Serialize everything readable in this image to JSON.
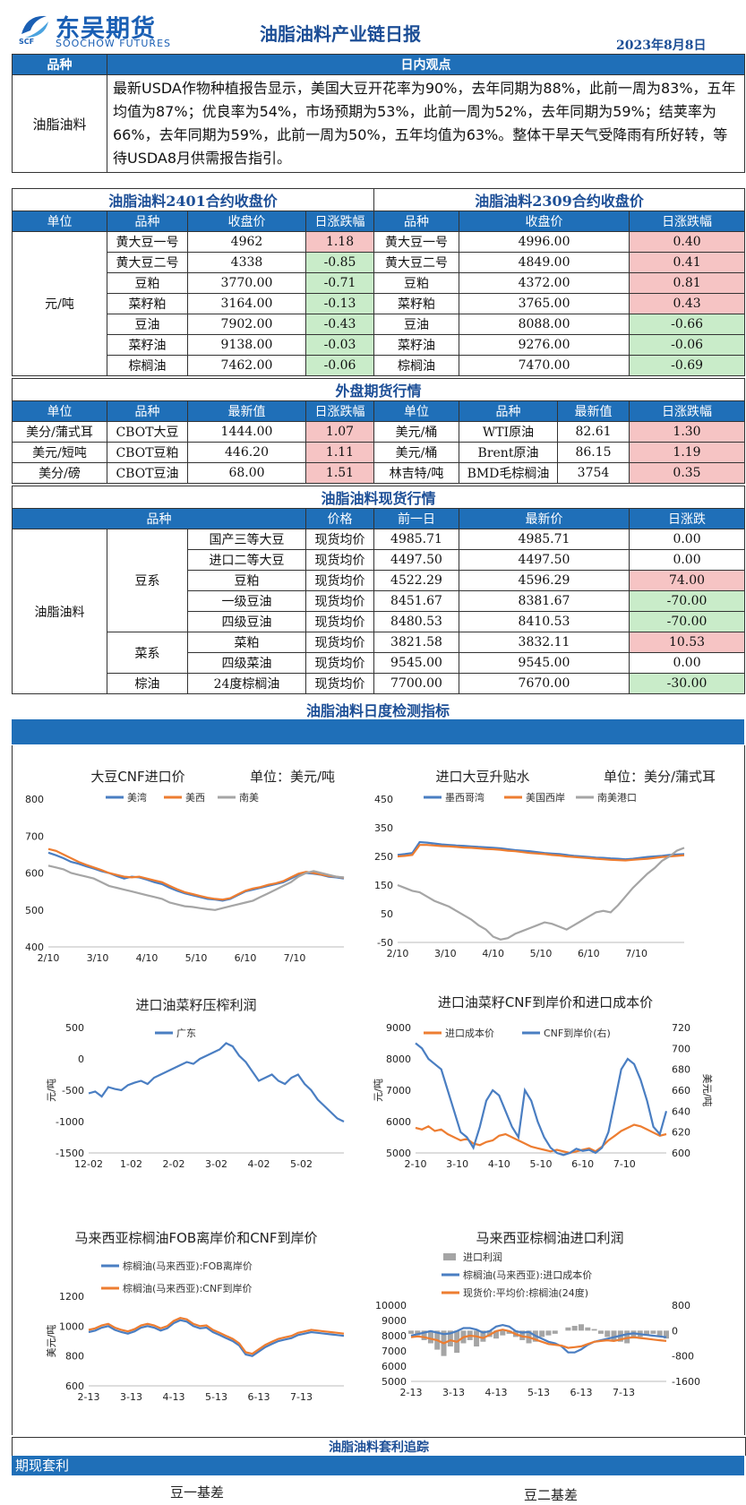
{
  "header": {
    "logo_cn": "东吴期货",
    "logo_en": "SOOCHOW FUTURES",
    "logo_mark": "SCF",
    "title": "油脂油料产业链日报",
    "date": "2023年8月8日"
  },
  "view": {
    "col1": "品种",
    "col2": "日内观点",
    "variety": "油脂油料",
    "text": "最新USDA作物种植报告显示，美国大豆开花率为90%，去年同期为88%，此前一周为83%，五年均值为87%；优良率为54%，市场预期为53%，此前一周为52%，去年同期为59%；结荚率为66%，去年同期为59%，此前一周为50%，五年均值为63%。整体干旱天气受降雨有所好转，等待USDA8月供需报告指引。"
  },
  "contracts": {
    "title_left": "油脂油料2401合约收盘价",
    "title_right": "油脂油料2309合约收盘价",
    "headers": [
      "单位",
      "品种",
      "收盘价",
      "日涨跌幅",
      "品种",
      "收盘价",
      "日涨跌幅"
    ],
    "unit": "元/吨",
    "rows": [
      {
        "n1": "黄大豆一号",
        "p1": "4962",
        "c1": "1.18",
        "s1": "pos",
        "n2": "黄大豆一号",
        "p2": "4996.00",
        "c2": "0.40",
        "s2": "pos"
      },
      {
        "n1": "黄大豆二号",
        "p1": "4338",
        "c1": "-0.85",
        "s1": "neg",
        "n2": "黄大豆二号",
        "p2": "4849.00",
        "c2": "0.41",
        "s2": "pos"
      },
      {
        "n1": "豆粕",
        "p1": "3770.00",
        "c1": "-0.71",
        "s1": "neg",
        "n2": "豆粕",
        "p2": "4372.00",
        "c2": "0.81",
        "s2": "pos"
      },
      {
        "n1": "菜籽粕",
        "p1": "3164.00",
        "c1": "-0.13",
        "s1": "neg",
        "n2": "菜籽粕",
        "p2": "3765.00",
        "c2": "0.43",
        "s2": "pos"
      },
      {
        "n1": "豆油",
        "p1": "7902.00",
        "c1": "-0.43",
        "s1": "neg",
        "n2": "豆油",
        "p2": "8088.00",
        "c2": "-0.66",
        "s2": "neg"
      },
      {
        "n1": "菜籽油",
        "p1": "9138.00",
        "c1": "-0.03",
        "s1": "neg",
        "n2": "菜籽油",
        "p2": "9276.00",
        "c2": "-0.06",
        "s2": "neg"
      },
      {
        "n1": "棕榈油",
        "p1": "7462.00",
        "c1": "-0.06",
        "s1": "neg",
        "n2": "棕榈油",
        "p2": "7470.00",
        "c2": "-0.69",
        "s2": "neg"
      }
    ]
  },
  "foreign": {
    "title": "外盘期货行情",
    "headers": [
      "单位",
      "品种",
      "最新值",
      "日涨跌幅",
      "单位",
      "品种",
      "最新值",
      "日涨跌幅"
    ],
    "rows": [
      {
        "u1": "美分/蒲式耳",
        "n1": "CBOT大豆",
        "v1": "1444.00",
        "c1": "1.07",
        "u2": "美元/桶",
        "n2": "WTI原油",
        "v2": "82.61",
        "c2": "1.30"
      },
      {
        "u1": "美元/短吨",
        "n1": "CBOT豆粕",
        "v1": "446.20",
        "c1": "1.11",
        "u2": "美元/桶",
        "n2": "Brent原油",
        "v2": "86.15",
        "c2": "1.19"
      },
      {
        "u1": "美分/磅",
        "n1": "CBOT豆油",
        "v1": "68.00",
        "c1": "1.51",
        "u2": "林吉特/吨",
        "n2": "BMD毛棕榈油",
        "v2": "3754",
        "c2": "0.35"
      }
    ]
  },
  "spot": {
    "title": "油脂油料现货行情",
    "headers": [
      "品种",
      "价格",
      "前一日",
      "最新价",
      "日涨跌"
    ],
    "group": "油脂油料",
    "families": [
      "豆系",
      "菜系",
      "棕油"
    ],
    "rows": [
      {
        "item": "国产三等大豆",
        "type": "现货均价",
        "prev": "4985.71",
        "last": "4985.71",
        "chg": "0.00",
        "s": ""
      },
      {
        "item": "进口二等大豆",
        "type": "现货均价",
        "prev": "4497.50",
        "last": "4497.50",
        "chg": "0.00",
        "s": ""
      },
      {
        "item": "豆粕",
        "type": "现货均价",
        "prev": "4522.29",
        "last": "4596.29",
        "chg": "74.00",
        "s": "pos"
      },
      {
        "item": "一级豆油",
        "type": "现货均价",
        "prev": "8451.67",
        "last": "8381.67",
        "chg": "-70.00",
        "s": "neg"
      },
      {
        "item": "四级豆油",
        "type": "现货均价",
        "prev": "8480.53",
        "last": "8410.53",
        "chg": "-70.00",
        "s": "neg"
      },
      {
        "item": "菜粕",
        "type": "现货均价",
        "prev": "3821.58",
        "last": "3832.11",
        "chg": "10.53",
        "s": "pos"
      },
      {
        "item": "四级菜油",
        "type": "现货均价",
        "prev": "9545.00",
        "last": "9545.00",
        "chg": "0.00",
        "s": ""
      },
      {
        "item": "24度棕榈油",
        "type": "现货均价",
        "prev": "7700.00",
        "last": "7670.00",
        "chg": "-30.00",
        "s": "neg"
      }
    ]
  },
  "monitor": {
    "title": "油脂油料日度检测指标"
  },
  "colors": {
    "blue": "#4a7ec2",
    "orange": "#ed7d31",
    "gray": "#a5a5a5"
  },
  "chart_data": [
    {
      "id": "c1",
      "type": "line",
      "title": "大豆CNF进口价",
      "unit_label": "单位：美元/吨",
      "x_ticks": [
        "2/10",
        "3/10",
        "4/10",
        "5/10",
        "6/10",
        "7/10"
      ],
      "ylim": [
        400,
        800
      ],
      "y_ticks": [
        "400",
        "500",
        "600",
        "700",
        "800"
      ],
      "series": [
        {
          "name": "美湾",
          "color": "#4a7ec2",
          "values": [
            655,
            648,
            640,
            630,
            625,
            618,
            612,
            605,
            600,
            592,
            585,
            590,
            588,
            582,
            575,
            570,
            560,
            552,
            545,
            540,
            535,
            530,
            528,
            525,
            530,
            540,
            550,
            555,
            560,
            565,
            570,
            575,
            585,
            595,
            600,
            598,
            595,
            590,
            588,
            585
          ]
        },
        {
          "name": "美西",
          "color": "#ed7d31",
          "values": [
            665,
            660,
            650,
            640,
            630,
            622,
            615,
            608,
            600,
            595,
            590,
            588,
            590,
            585,
            580,
            575,
            565,
            556,
            548,
            543,
            538,
            533,
            530,
            528,
            532,
            542,
            552,
            558,
            562,
            568,
            572,
            578,
            588,
            598,
            603,
            600,
            596,
            592,
            590,
            587
          ]
        },
        {
          "name": "南美",
          "color": "#a5a5a5",
          "values": [
            620,
            615,
            610,
            600,
            595,
            590,
            585,
            575,
            565,
            560,
            555,
            550,
            545,
            540,
            535,
            530,
            520,
            515,
            510,
            508,
            505,
            502,
            500,
            505,
            510,
            515,
            520,
            525,
            535,
            545,
            555,
            565,
            575,
            590,
            600,
            605,
            600,
            595,
            590,
            588
          ]
        }
      ]
    },
    {
      "id": "c2",
      "type": "line",
      "title": "进口大豆升贴水",
      "unit_label": "单位：美分/蒲式耳",
      "x_ticks": [
        "2/10",
        "3/10",
        "4/10",
        "5/10",
        "6/10",
        "7/10"
      ],
      "ylim": [
        -50,
        450
      ],
      "y_ticks": [
        "-50",
        "50",
        "150",
        "250",
        "350",
        "450"
      ],
      "series": [
        {
          "name": "墨西哥湾",
          "color": "#4a7ec2",
          "values": [
            255,
            258,
            262,
            300,
            298,
            295,
            292,
            290,
            288,
            287,
            285,
            283,
            282,
            280,
            278,
            275,
            272,
            270,
            268,
            265,
            262,
            260,
            258,
            255,
            252,
            250,
            248,
            246,
            245,
            243,
            242,
            240,
            242,
            245,
            248,
            250,
            252,
            255,
            257,
            258
          ]
        },
        {
          "name": "美国西岸",
          "color": "#ed7d31",
          "values": [
            250,
            252,
            255,
            290,
            290,
            288,
            286,
            285,
            283,
            281,
            280,
            278,
            276,
            275,
            273,
            270,
            268,
            265,
            262,
            260,
            258,
            255,
            253,
            250,
            248,
            246,
            244,
            242,
            240,
            238,
            237,
            236,
            238,
            240,
            242,
            245,
            248,
            250,
            252,
            254
          ]
        },
        {
          "name": "南美港口",
          "color": "#a5a5a5",
          "values": [
            150,
            140,
            130,
            125,
            110,
            95,
            85,
            75,
            60,
            45,
            30,
            10,
            -5,
            -30,
            -40,
            -35,
            -20,
            -10,
            0,
            10,
            20,
            15,
            5,
            -5,
            10,
            25,
            40,
            55,
            60,
            55,
            80,
            110,
            140,
            165,
            190,
            210,
            235,
            250,
            270,
            280
          ]
        }
      ]
    },
    {
      "id": "c3",
      "type": "line",
      "title": "进口油菜籽压榨利润",
      "x_ticks": [
        "12-02",
        "1-02",
        "2-02",
        "3-02",
        "4-02",
        "5-02"
      ],
      "ylim": [
        -1500,
        500
      ],
      "y_ticks": [
        "-1500",
        "-1000",
        "-500",
        "0",
        "500"
      ],
      "ylabel": "元/吨",
      "series": [
        {
          "name": "广东",
          "color": "#4a7ec2",
          "values": [
            -550,
            -520,
            -600,
            -450,
            -480,
            -500,
            -420,
            -380,
            -350,
            -400,
            -300,
            -250,
            -200,
            -150,
            -100,
            -50,
            -80,
            0,
            50,
            100,
            150,
            250,
            200,
            50,
            -50,
            -200,
            -350,
            -300,
            -250,
            -350,
            -400,
            -300,
            -250,
            -400,
            -500,
            -650,
            -750,
            -850,
            -950,
            -1000
          ]
        }
      ]
    },
    {
      "id": "c4",
      "type": "line",
      "title": "进口油菜籽CNF到岸价和进口成本价",
      "x_ticks": [
        "2-10",
        "3-10",
        "4-10",
        "5-10",
        "6-10",
        "7-10"
      ],
      "ylim": [
        5000,
        9000
      ],
      "y_ticks": [
        "5000",
        "6000",
        "7000",
        "8000",
        "9000"
      ],
      "y2lim": [
        600,
        720
      ],
      "y2_ticks": [
        "600",
        "620",
        "640",
        "660",
        "680",
        "700",
        "720"
      ],
      "ylabel": "元/吨",
      "y2label": "美元/吨",
      "series": [
        {
          "name": "进口成本价",
          "color": "#ed7d31",
          "values": [
            5800,
            5750,
            5850,
            5700,
            5750,
            5600,
            5500,
            5400,
            5450,
            5300,
            5250,
            5350,
            5400,
            5550,
            5600,
            5500,
            5400,
            5300,
            5200,
            5150,
            5100,
            5050,
            5100,
            5050,
            5000,
            5050,
            5100,
            5150,
            5050,
            5200,
            5400,
            5550,
            5700,
            5800,
            5900,
            5850,
            5750,
            5650,
            5550,
            5600
          ]
        },
        {
          "name": "CNF到岸价(右)",
          "color": "#4a7ec2",
          "axis": "right",
          "values": [
            705,
            700,
            690,
            685,
            680,
            660,
            640,
            620,
            615,
            605,
            625,
            650,
            660,
            655,
            640,
            625,
            615,
            660,
            650,
            630,
            615,
            605,
            600,
            598,
            600,
            604,
            602,
            603,
            600,
            605,
            620,
            650,
            680,
            690,
            685,
            670,
            650,
            625,
            618,
            640
          ]
        }
      ]
    },
    {
      "id": "c5",
      "type": "line",
      "title": "马来西亚棕榈油FOB离岸价和CNF到岸价",
      "x_ticks": [
        "2-13",
        "3-13",
        "4-13",
        "5-13",
        "6-13",
        "7-13"
      ],
      "ylim": [
        600,
        1200
      ],
      "y_ticks": [
        "600",
        "800",
        "1000",
        "1200"
      ],
      "ylabel": "美元/吨",
      "series": [
        {
          "name": "棕榈油(马来西亚):FOB离岸价",
          "color": "#4a7ec2",
          "values": [
            960,
            970,
            990,
            1000,
            975,
            960,
            950,
            965,
            990,
            1000,
            990,
            970,
            985,
            1020,
            1040,
            1030,
            1000,
            985,
            990,
            960,
            940,
            920,
            900,
            870,
            810,
            800,
            830,
            860,
            880,
            900,
            910,
            920,
            940,
            950,
            960,
            955,
            950,
            945,
            940,
            935
          ]
        },
        {
          "name": "棕榈油(马来西亚):CNF到岸价",
          "color": "#ed7d31",
          "values": [
            975,
            985,
            1005,
            1015,
            990,
            975,
            965,
            980,
            1005,
            1015,
            1005,
            985,
            1000,
            1035,
            1055,
            1045,
            1015,
            1000,
            1005,
            975,
            955,
            935,
            915,
            885,
            825,
            815,
            845,
            875,
            895,
            915,
            925,
            935,
            955,
            965,
            975,
            970,
            965,
            960,
            955,
            950
          ]
        }
      ]
    },
    {
      "id": "c6",
      "type": "area",
      "title": "马来西亚棕榈油进口利润",
      "x_ticks": [
        "2-13",
        "3-13",
        "4-13",
        "5-13",
        "6-13",
        "7-13"
      ],
      "ylim": [
        5000,
        10000
      ],
      "y_ticks": [
        "5000",
        "6000",
        "7000",
        "8000",
        "9000",
        "10000"
      ],
      "y2lim": [
        -1600,
        800
      ],
      "y2_ticks": [
        "-1600",
        "-800",
        "0",
        "800"
      ],
      "series": [
        {
          "name": "进口利润",
          "color": "#a5a5a5",
          "kind": "bar",
          "axis": "right",
          "values": [
            -100,
            -150,
            -300,
            -400,
            -600,
            -800,
            -500,
            -700,
            -400,
            -300,
            -500,
            -350,
            -200,
            -250,
            -150,
            -100,
            -200,
            -300,
            -400,
            -350,
            -200,
            -150,
            -100,
            0,
            100,
            150,
            200,
            100,
            50,
            -100,
            -200,
            -300,
            -350,
            -400,
            -250,
            -200,
            -150,
            -100,
            -200,
            -250
          ]
        },
        {
          "name": "棕榈油(马来西亚):进口成本价",
          "color": "#4a7ec2",
          "values": [
            8000,
            8100,
            8200,
            8300,
            8200,
            8100,
            8150,
            8300,
            8500,
            8500,
            8400,
            8200,
            8300,
            8600,
            8700,
            8600,
            8300,
            8200,
            8250,
            8000,
            7800,
            7600,
            7500,
            7300,
            6900,
            6900,
            7100,
            7400,
            7600,
            7700,
            7800,
            7900,
            8000,
            8100,
            8150,
            8100,
            8050,
            8000,
            7950,
            7900
          ]
        },
        {
          "name": "现货价:平均价:棕榈油(24度)",
          "color": "#ed7d31",
          "values": [
            7900,
            7950,
            7900,
            7800,
            7700,
            7500,
            7700,
            7600,
            7900,
            8000,
            7950,
            7850,
            8050,
            8300,
            8400,
            8300,
            8100,
            7950,
            7900,
            7750,
            7600,
            7450,
            7400,
            7350,
            7200,
            7250,
            7300,
            7450,
            7600,
            7650,
            7700,
            7650,
            7750,
            7850,
            7900,
            7850,
            7800,
            7750,
            7700,
            7650
          ]
        }
      ]
    }
  ],
  "arbitrage": {
    "title": "油脂油料套利追踪",
    "bar": "期现套利",
    "sub_left": "豆一基差",
    "sub_right": "豆二基差"
  }
}
